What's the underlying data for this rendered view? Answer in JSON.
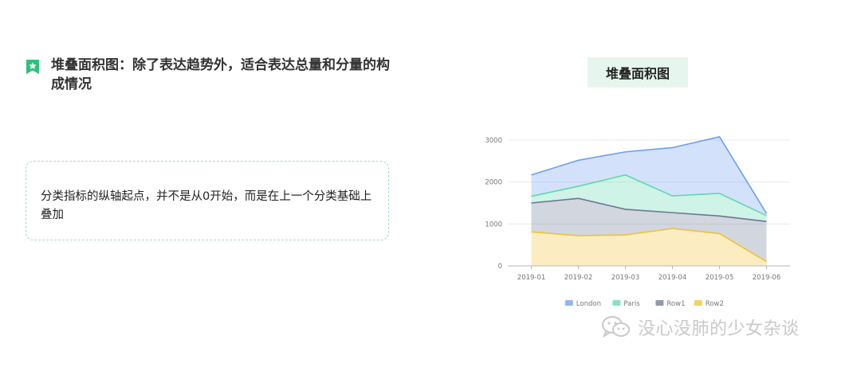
{
  "heading": {
    "icon": "bookmark-star-icon",
    "text": "堆叠面积图：除了表达趋势外，适合表达总量和分量的构成情况"
  },
  "note": {
    "text": "分类指标的纵轴起点，并不是从0开始，而是在上一个分类基础上叠加"
  },
  "chart_title": "堆叠面积图",
  "chart_data": {
    "type": "area",
    "stacked": true,
    "title": "堆叠面积图",
    "categories": [
      "2019-01",
      "2019-02",
      "2019-03",
      "2019-04",
      "2019-05",
      "2019-06"
    ],
    "series": [
      {
        "name": "London",
        "values": [
          510,
          620,
          550,
          1150,
          1350,
          50
        ],
        "color": "#6e9ef0"
      },
      {
        "name": "Paris",
        "values": [
          160,
          290,
          820,
          400,
          540,
          140
        ],
        "color": "#5fd8ad"
      },
      {
        "name": "Row1",
        "values": [
          690,
          890,
          610,
          380,
          420,
          960
        ],
        "color": "#6b7892"
      },
      {
        "name": "Row2",
        "values": [
          810,
          720,
          740,
          890,
          770,
          100
        ],
        "color": "#f1c232"
      }
    ],
    "yticks": [
      0,
      1000,
      2000,
      3000
    ],
    "ylim": [
      0,
      3000
    ],
    "xlabel": "",
    "ylabel": "",
    "grid": true,
    "legend_position": "bottom"
  },
  "watermark": {
    "icon": "wechat-icon",
    "text": "没心没肺的少女杂谈"
  }
}
